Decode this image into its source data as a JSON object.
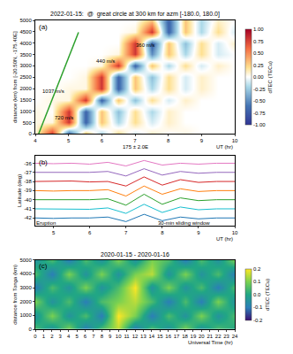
{
  "chart_data": [
    {
      "type": "heatmap",
      "title": "2022-01-15:  @  great circle at 300 km for azm [-180.0, 180.0]",
      "panel_label": "(a)",
      "x_label": "UT (hr)",
      "y_label": "distance (km) from [-20.50N, -175.40E]",
      "note": "175 ± 2.0E",
      "grid": false,
      "x": [
        4,
        4.5,
        5,
        5.5,
        6,
        6.5,
        7,
        7.5,
        8,
        8.5,
        9,
        9.5,
        10
      ],
      "y": [
        0,
        500,
        1000,
        1500,
        2000,
        2500,
        3000,
        3500,
        4000,
        4500,
        5000
      ],
      "z": [
        [
          0.05,
          0.8,
          -0.7,
          0.3,
          -0.2,
          0.2,
          -0.1,
          0.1,
          0,
          0.05,
          0,
          0,
          0
        ],
        [
          0.05,
          0.05,
          0.8,
          -0.7,
          0.3,
          -0.2,
          0.2,
          -0.1,
          0.1,
          0,
          0,
          0,
          0
        ],
        [
          0.05,
          0,
          0.8,
          -0.7,
          0.3,
          -0.3,
          0.2,
          -0.2,
          0.1,
          0,
          0,
          0,
          0
        ],
        [
          0,
          0.05,
          0.05,
          0.8,
          -0.7,
          0.3,
          -0.3,
          0.2,
          -0.1,
          0.1,
          0,
          0,
          0
        ],
        [
          0,
          0,
          0.05,
          0.05,
          0.8,
          -0.7,
          0.3,
          -0.2,
          0.2,
          -0.1,
          0.1,
          0,
          0
        ],
        [
          0,
          0,
          0,
          0.05,
          0.8,
          -0.7,
          0.3,
          -0.3,
          0.2,
          -0.1,
          0.1,
          0,
          0
        ],
        [
          0,
          0,
          0,
          0,
          0.05,
          0.8,
          -0.7,
          0.3,
          -0.2,
          0.2,
          -0.1,
          0.1,
          0
        ],
        [
          0,
          0,
          0,
          0,
          0,
          0.05,
          0.8,
          -0.5,
          0.3,
          -0.2,
          0.2,
          -0.1,
          0
        ],
        [
          0,
          0,
          0,
          0,
          0,
          0,
          0.8,
          -0.7,
          0.3,
          -0.3,
          0.2,
          -0.1,
          0.1
        ],
        [
          0,
          0,
          0,
          0,
          0,
          0,
          0.05,
          0.8,
          -0.7,
          0.3,
          -0.2,
          0.2,
          -0.1
        ],
        [
          0,
          0,
          0,
          0,
          0,
          0,
          0,
          0.3,
          -0.7,
          0.3,
          -0.2,
          0.1,
          0
        ]
      ],
      "xlim": [
        4,
        10
      ],
      "ylim": [
        0,
        5000
      ],
      "xticks": [
        4,
        5,
        6,
        7,
        8,
        9,
        10
      ],
      "yticks": [
        0,
        500,
        1000,
        1500,
        2000,
        2500,
        3000,
        3500,
        4000,
        4500,
        5000
      ],
      "colorbar": {
        "title": "dTEC (TECu)",
        "range": [
          -1,
          1
        ],
        "ticks": [
          {
            "value": -1,
            "label": "-1.00"
          },
          {
            "value": -0.75,
            "label": "-0.75"
          },
          {
            "value": -0.5,
            "label": "-0.50"
          },
          {
            "value": -0.25,
            "label": "-0.25"
          },
          {
            "value": 0,
            "label": "0.00"
          },
          {
            "value": 0.25,
            "label": "0.25"
          },
          {
            "value": 0.5,
            "label": "0.50"
          },
          {
            "value": 0.75,
            "label": "0.75"
          },
          {
            "value": 1,
            "label": "1.00"
          }
        ]
      },
      "lines": [
        {
          "x": [
            4.1,
            5.3
          ],
          "y": [
            0,
            4480
          ],
          "color": "#2ca02c"
        }
      ],
      "annotations": [
        {
          "text": "1037 m/s",
          "x": 4.55,
          "y": 1900
        },
        {
          "text": "720 m/s",
          "x": 4.85,
          "y": 700
        },
        {
          "text": "440 m/s",
          "x": 6.1,
          "y": 3200
        },
        {
          "text": "360 m/s",
          "x": 7.3,
          "y": 3900
        }
      ]
    },
    {
      "type": "line",
      "panel_label": "(b)",
      "x_label": "UT (hr)",
      "y_label": "Latitude (deg)",
      "grid": false,
      "x": [
        4.5,
        5,
        5.5,
        6,
        6.5,
        7,
        7.5,
        8,
        8.5,
        9,
        9.5,
        10
      ],
      "series": [
        {
          "color": "#e377c2",
          "values": [
            -36,
            -36.05,
            -36,
            -36.1,
            -35.9,
            -36.3,
            -35.7,
            -36.2,
            -36,
            -36.1,
            -36,
            -36
          ]
        },
        {
          "color": "#9467bd",
          "values": [
            -37,
            -37,
            -37.05,
            -37,
            -36.9,
            -37.4,
            -36.6,
            -37.3,
            -36.9,
            -37.1,
            -37,
            -37
          ]
        },
        {
          "color": "#d62728",
          "values": [
            -38,
            -38,
            -37.95,
            -38.05,
            -38,
            -38.5,
            -37.5,
            -38.4,
            -37.8,
            -38.1,
            -38,
            -38
          ]
        },
        {
          "color": "#ff7f0e",
          "values": [
            -39,
            -39.05,
            -39,
            -39,
            -38.9,
            -39.6,
            -38.5,
            -39.4,
            -38.8,
            -39.1,
            -39,
            -39
          ]
        },
        {
          "color": "#2ca02c",
          "values": [
            -40,
            -40,
            -40.05,
            -40,
            -39.9,
            -40.6,
            -39.4,
            -40.5,
            -39.8,
            -40.1,
            -40,
            -40
          ]
        },
        {
          "color": "#17becf",
          "values": [
            -41,
            -41,
            -41,
            -41.05,
            -40.9,
            -41.5,
            -40.5,
            -41.4,
            -40.8,
            -41.1,
            -41,
            -41
          ]
        },
        {
          "color": "#1f77b4",
          "values": [
            -42,
            -42.05,
            -42,
            -42,
            -41.9,
            -42.4,
            -41.6,
            -42.3,
            -41.9,
            -42.1,
            -42,
            -42
          ]
        }
      ],
      "xlim": [
        4.5,
        10
      ],
      "ylim": [
        -42.8,
        -35.2
      ],
      "xticks": [
        5,
        6,
        7,
        8,
        9,
        10
      ],
      "yticks": [
        -42,
        -41,
        -40,
        -39,
        -38,
        -37,
        -36
      ],
      "annotations": [
        {
          "text": "30-min sliding window",
          "x": 8.6,
          "y": -42.55
        },
        {
          "text": "Eruption",
          "x": 4.8,
          "y": -42.55
        }
      ]
    },
    {
      "type": "heatmap",
      "title": "2020-01-15 - 2020-01-16",
      "panel_label": "(c)",
      "x_label": "Universal Time (hr)",
      "y_label": "distance from Tonga (km)",
      "grid": false,
      "x": [
        0,
        2,
        4,
        6,
        8,
        10,
        12,
        14,
        16,
        18,
        20,
        22,
        24
      ],
      "y": [
        0,
        1000,
        2000,
        3000,
        4000,
        5000
      ],
      "z": [
        [
          0.05,
          -0.05,
          0.1,
          -0.1,
          0.05,
          0.15,
          -0.1,
          0.05,
          -0.05,
          0.1,
          -0.05,
          0.05,
          0
        ],
        [
          -0.05,
          0.1,
          -0.05,
          0.05,
          -0.1,
          0.2,
          0.1,
          -0.1,
          0.05,
          -0.05,
          0.1,
          -0.05,
          0.05
        ],
        [
          0.1,
          -0.05,
          0.05,
          -0.1,
          0.05,
          0.1,
          0.15,
          0.05,
          -0.1,
          0.05,
          -0.1,
          0.1,
          -0.05
        ],
        [
          -0.1,
          0.05,
          -0.05,
          0.1,
          -0.05,
          0.05,
          0.2,
          -0.05,
          0.1,
          -0.05,
          0.05,
          -0.1,
          0.05
        ],
        [
          0.05,
          -0.1,
          0.1,
          -0.05,
          0.1,
          -0.05,
          0.1,
          0.15,
          -0.05,
          0.1,
          -0.05,
          0.05,
          -0.1
        ],
        [
          -0.05,
          0.05,
          -0.1,
          0.05,
          -0.05,
          0.1,
          -0.05,
          0.1,
          0.05,
          -0.1,
          0.05,
          -0.05,
          0.1
        ]
      ],
      "xlim": [
        0,
        24
      ],
      "ylim": [
        0,
        5000
      ],
      "xticks": [
        0,
        1,
        2,
        3,
        4,
        5,
        6,
        7,
        8,
        9,
        10,
        11,
        12,
        13,
        14,
        15,
        16,
        17,
        18,
        19,
        20,
        21,
        22,
        23,
        24
      ],
      "yticks": [
        0,
        1000,
        2000,
        3000,
        4000,
        5000
      ],
      "colorbar": {
        "title": "dTEC (TECu)",
        "range": [
          -0.2,
          0.2
        ],
        "ticks": [
          -0.2,
          -0.1,
          {
            "value": 0,
            "label": "0.0"
          },
          0.1,
          0.2
        ]
      }
    }
  ]
}
